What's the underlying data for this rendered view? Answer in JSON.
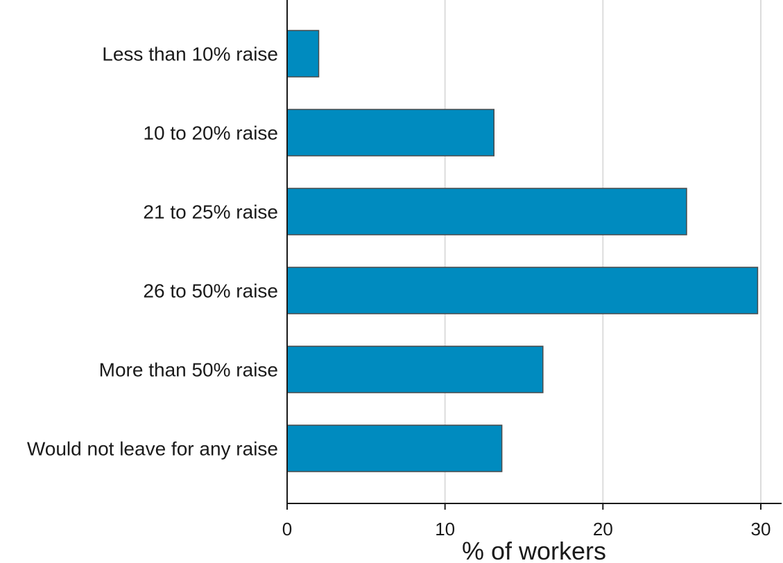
{
  "chart_data": {
    "type": "bar",
    "orientation": "horizontal",
    "title": "",
    "xlabel": "% of workers",
    "ylabel": "",
    "categories": [
      "Less than 10% raise",
      "10 to 20% raise",
      "21 to 25% raise",
      "26 to 50% raise",
      "More than 50% raise",
      "Would not leave for any raise"
    ],
    "values": [
      2.0,
      13.1,
      25.3,
      29.8,
      16.2,
      13.6
    ],
    "xlim": [
      0,
      30
    ],
    "xticks": [
      0,
      10,
      20,
      30
    ],
    "grid": "vertical",
    "legend": "none",
    "colors": {
      "bar": "#008bbf",
      "bar_edge": "#4a4a4a",
      "grid": "#dcdcdc",
      "axis": "#1a1a1a"
    }
  }
}
